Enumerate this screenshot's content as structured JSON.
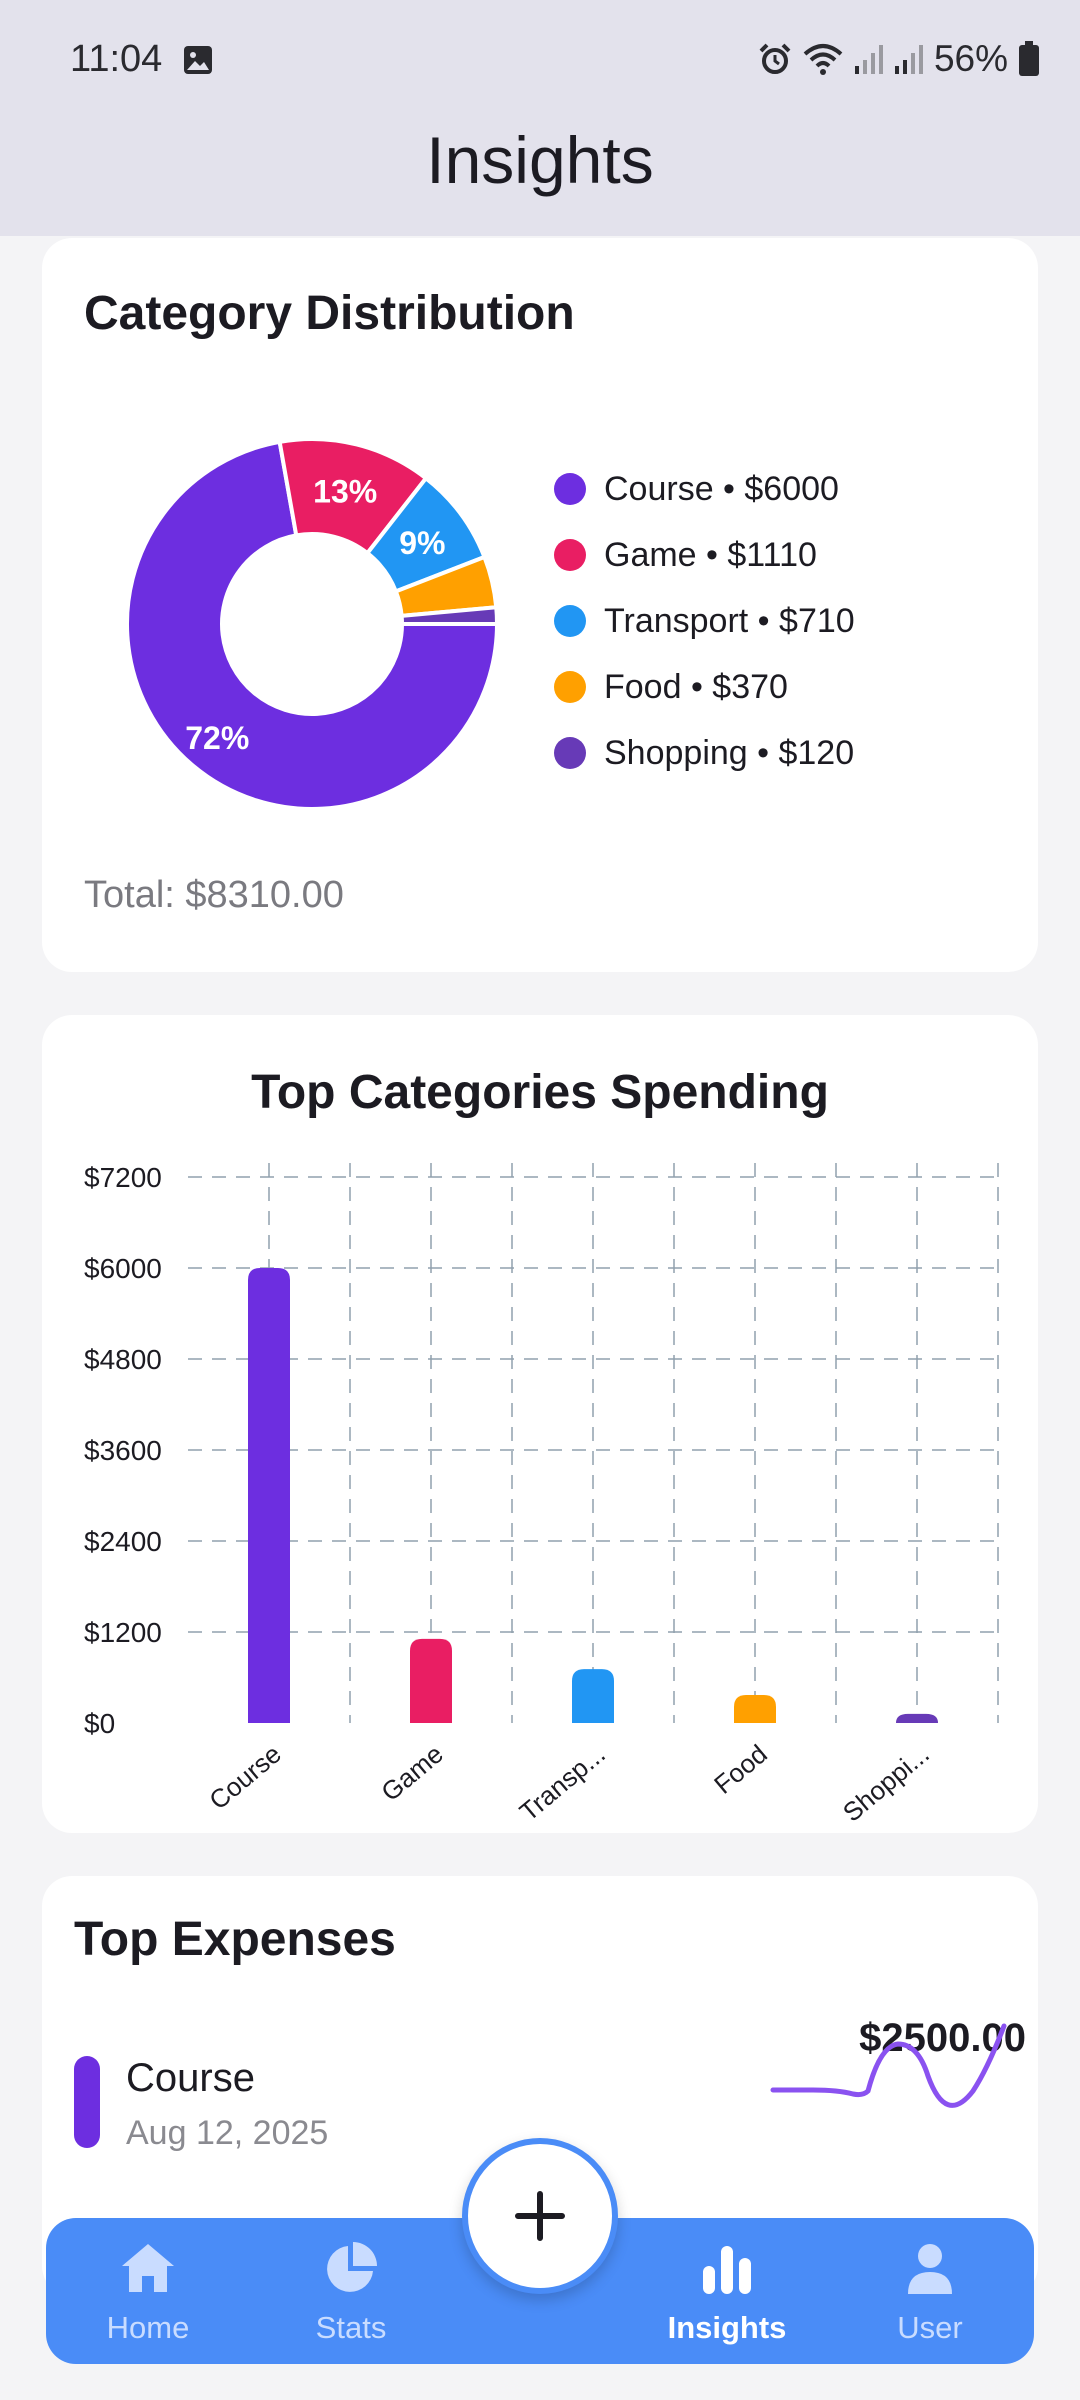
{
  "status": {
    "time": "11:04",
    "battery": "56%"
  },
  "appbar": {
    "title": "Insights"
  },
  "distribution": {
    "title": "Category Distribution",
    "slices": [
      {
        "name": "Course",
        "value": 6000,
        "label": "Course • $6000",
        "pct_label": "72%",
        "color": "#6d2ee0"
      },
      {
        "name": "Game",
        "value": 1110,
        "label": "Game • $1110",
        "pct_label": "13%",
        "color": "#e91e63"
      },
      {
        "name": "Transport",
        "value": 710,
        "label": "Transport • $710",
        "pct_label": "9%",
        "color": "#2196f3"
      },
      {
        "name": "Food",
        "value": 370,
        "label": "Food • $370",
        "pct_label": "",
        "color": "#ffa000"
      },
      {
        "name": "Shopping",
        "value": 120,
        "label": "Shopping • $120",
        "pct_label": "",
        "color": "#673ab7"
      }
    ],
    "total": "Total: $8310.00"
  },
  "chart_data": {
    "type": "bar",
    "title": "Top Categories Spending",
    "categories": [
      "Course",
      "Game",
      "Transp...",
      "Food",
      "Shoppi..."
    ],
    "values": [
      6000,
      1110,
      710,
      370,
      120
    ],
    "colors": [
      "#6d2ee0",
      "#e91e63",
      "#2196f3",
      "#ffa000",
      "#673ab7"
    ],
    "y_ticks": [
      "$0",
      "$1200",
      "$2400",
      "$3600",
      "$4800",
      "$6000",
      "$7200"
    ],
    "ylim": [
      0,
      7200
    ],
    "grid": true
  },
  "top_expenses": {
    "title": "Top Expenses",
    "items": [
      {
        "name": "Course",
        "date": "Aug 12, 2025",
        "amount": "$2500.00"
      }
    ]
  },
  "nav": {
    "items": [
      {
        "label": "Home",
        "icon": "home-icon"
      },
      {
        "label": "Stats",
        "icon": "pie-chart-icon"
      },
      {
        "label": "Insights",
        "icon": "bar-chart-icon"
      },
      {
        "label": "User",
        "icon": "user-icon"
      }
    ],
    "active": "Insights",
    "fab_icon": "plus-icon"
  }
}
